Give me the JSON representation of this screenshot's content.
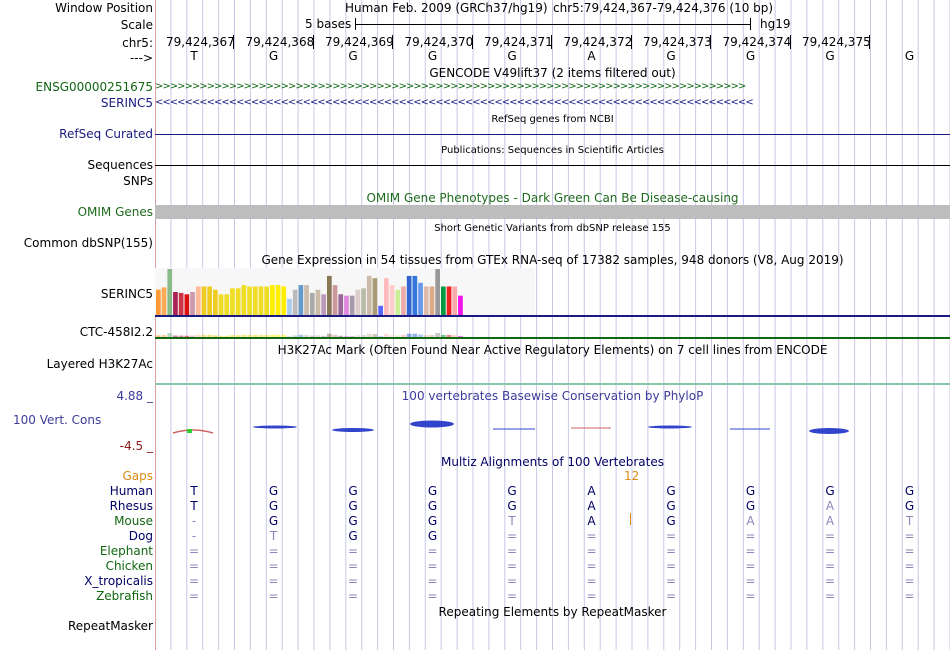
{
  "colors": {
    "grid": "#c8c8e6",
    "gencode_green": "#116611",
    "serinc_blue": "#1a1a80",
    "navy": "#000066",
    "omim_green": "#1d6a1d",
    "omim_bar": "#bdbdbd",
    "phylop_blue": "#3c3c9a",
    "phylop_red": "#8a1a1a",
    "gaps_orange": "#d98b12",
    "label_left_border": "#e0a0a0"
  },
  "header": {
    "window_position_label": "Window Position",
    "assembly_text": "Human Feb. 2009 (GRCh37/hg19)",
    "position_text": "chr5:79,424,367-79,424,376 (10 bp)",
    "scale_label": "Scale",
    "scale_bar_text": "5 bases",
    "scale_db": "hg19",
    "chrom_label": "chr5:",
    "strand_label": "--->",
    "coordinates": [
      "79,424,367",
      "79,424,368",
      "79,424,369",
      "79,424,370",
      "79,424,371",
      "79,424,372",
      "79,424,373",
      "79,424,374",
      "79,424,375"
    ],
    "bases": [
      "T",
      "G",
      "G",
      "G",
      "G",
      "A",
      "G",
      "G",
      "G",
      "G"
    ]
  },
  "tracks": {
    "gencode": {
      "title": "GENCODE V49lift37 (2 items filtered out)",
      "items": [
        {
          "label": "ENSG00000251675",
          "strand": "+",
          "arrows": ">>>>>>>>>>>>>>>>>>>>>>>>>>>>>>>>>>>>>>>>>>>>>>>>>>>>>>>>>>>>>>>>>>>>>>>>>>>>>>>>"
        },
        {
          "label": "SERINC5",
          "strand": "-",
          "arrows": "<<<<<<<<<<<<<<<<<<<<<<<<<<<<<<<<<<<<<<<<<<<<<<<<<<<<<<<<<<<<<<<<<<<<<<<<<<<<<<<<<"
        }
      ]
    },
    "refseq": {
      "title": "RefSeq genes from NCBI",
      "label": "RefSeq Curated"
    },
    "publications": {
      "title": "Publications: Sequences in Scientific Articles",
      "label": "Sequences"
    },
    "snps": {
      "label": "SNPs"
    },
    "omim": {
      "title": "OMIM Gene Phenotypes - Dark Green Can Be Disease-causing",
      "label": "OMIM Genes"
    },
    "dbsnp": {
      "title": "Short Genetic Variants from dbSNP release 155",
      "label": "Common dbSNP(155)"
    },
    "gtex": {
      "title": "Gene Expression in 54 tissues from GTEx RNA-seq of 17382 samples, 948 donors (V8, Aug 2019)",
      "label": "SERINC5",
      "label2": "CTC-458I2.2",
      "bars": [
        {
          "v": 0.55,
          "c": "#ff9933"
        },
        {
          "v": 0.6,
          "c": "#ffaa55"
        },
        {
          "v": 1.0,
          "c": "#88bb88"
        },
        {
          "v": 0.5,
          "c": "#aa2255"
        },
        {
          "v": 0.48,
          "c": "#cc3344"
        },
        {
          "v": 0.45,
          "c": "#dd1111"
        },
        {
          "v": 0.5,
          "c": "#cc99aa"
        },
        {
          "v": 0.62,
          "c": "#ffbb99"
        },
        {
          "v": 0.62,
          "c": "#eecc22"
        },
        {
          "v": 0.62,
          "c": "#eecc22"
        },
        {
          "v": 0.55,
          "c": "#eecc22"
        },
        {
          "v": 0.45,
          "c": "#eedd22"
        },
        {
          "v": 0.45,
          "c": "#eedd22"
        },
        {
          "v": 0.58,
          "c": "#eedd22"
        },
        {
          "v": 0.58,
          "c": "#eedd22"
        },
        {
          "v": 0.65,
          "c": "#eedd22"
        },
        {
          "v": 0.62,
          "c": "#eedd22"
        },
        {
          "v": 0.62,
          "c": "#eedd22"
        },
        {
          "v": 0.62,
          "c": "#eedd22"
        },
        {
          "v": 0.62,
          "c": "#eedd22"
        },
        {
          "v": 0.65,
          "c": "#ffee00"
        },
        {
          "v": 0.65,
          "c": "#ffee00"
        },
        {
          "v": 0.62,
          "c": "#ffee00"
        },
        {
          "v": 0.35,
          "c": "#aaccee"
        },
        {
          "v": 0.55,
          "c": "#bbbbbb"
        },
        {
          "v": 0.65,
          "c": "#6699cc"
        },
        {
          "v": 0.65,
          "c": "#ccbbaa"
        },
        {
          "v": 0.48,
          "c": "#aaaaaa"
        },
        {
          "v": 0.55,
          "c": "#ccbbaa"
        },
        {
          "v": 0.45,
          "c": "#bb99bb"
        },
        {
          "v": 0.85,
          "c": "#887755"
        },
        {
          "v": 0.65,
          "c": "#cc9999"
        },
        {
          "v": 0.45,
          "c": "#996699"
        },
        {
          "v": 0.42,
          "c": "#dd88dd"
        },
        {
          "v": 0.42,
          "c": "#aa99aa"
        },
        {
          "v": 0.55,
          "c": "#ddcccc"
        },
        {
          "v": 0.58,
          "c": "#bbbbaa"
        },
        {
          "v": 0.85,
          "c": "#ccbbaa"
        },
        {
          "v": 0.8,
          "c": "#aa9977"
        },
        {
          "v": 0.2,
          "c": "#5566ff"
        },
        {
          "v": 0.8,
          "c": "#ffbbbb"
        },
        {
          "v": 0.65,
          "c": "#ffcccc"
        },
        {
          "v": 0.55,
          "c": "#ccee99"
        },
        {
          "v": 0.62,
          "c": "#eeaaaa"
        },
        {
          "v": 0.85,
          "c": "#3366cc"
        },
        {
          "v": 0.85,
          "c": "#3377dd"
        },
        {
          "v": 0.7,
          "c": "#6699ee"
        },
        {
          "v": 0.62,
          "c": "#ddbbaa"
        },
        {
          "v": 0.62,
          "c": "#ddaa88"
        },
        {
          "v": 1.0,
          "c": "#999999"
        },
        {
          "v": 0.62,
          "c": "#009944"
        },
        {
          "v": 0.62,
          "c": "#ee2222"
        },
        {
          "v": 0.62,
          "c": "#ffaaaa"
        },
        {
          "v": 0.42,
          "c": "#ee11ee"
        }
      ]
    },
    "h3k27ac": {
      "title": "H3K27Ac Mark (Often Found Near Active Regulatory Elements) on 7 cell lines from ENCODE",
      "label": "Layered H3K27Ac"
    },
    "phylop": {
      "title": "100 vertebrates Basewise Conservation by PhyloP",
      "label": "100 Vert. Cons",
      "max": "4.88 _",
      "min": "-4.5 _"
    },
    "multiz": {
      "title": "Multiz Alignments of 100 Vertebrates",
      "gaps_label": "Gaps",
      "gap_count": "12",
      "species": [
        {
          "name": "Human",
          "seq": [
            "T",
            "G",
            "G",
            "G",
            "G",
            "A",
            "G",
            "G",
            "G",
            "G"
          ]
        },
        {
          "name": "Rhesus",
          "seq": [
            "T",
            "G",
            "G",
            "G",
            "G",
            "A",
            "G",
            "G",
            "A",
            "G"
          ]
        },
        {
          "name": "Mouse",
          "seq": [
            "-",
            "G",
            "G",
            "G",
            "T",
            "A",
            "G",
            "A",
            "A",
            "T"
          ]
        },
        {
          "name": "Dog",
          "seq": [
            "-",
            "T",
            "G",
            "G",
            "=",
            "=",
            "=",
            "=",
            "=",
            "="
          ]
        },
        {
          "name": "Elephant",
          "seq": [
            "=",
            "=",
            "=",
            "=",
            "=",
            "=",
            "=",
            "=",
            "=",
            "="
          ]
        },
        {
          "name": "Chicken",
          "seq": [
            "=",
            "=",
            "=",
            "=",
            "=",
            "=",
            "=",
            "=",
            "=",
            "="
          ]
        },
        {
          "name": "X_tropicalis",
          "seq": [
            "=",
            "=",
            "=",
            "=",
            "=",
            "=",
            "=",
            "=",
            "=",
            "="
          ]
        },
        {
          "name": "Zebrafish",
          "seq": [
            "=",
            "=",
            "=",
            "=",
            "=",
            "=",
            "=",
            "=",
            "=",
            "="
          ]
        }
      ]
    },
    "repeatmasker": {
      "title": "Repeating Elements by RepeatMasker",
      "label": "RepeatMasker"
    }
  }
}
